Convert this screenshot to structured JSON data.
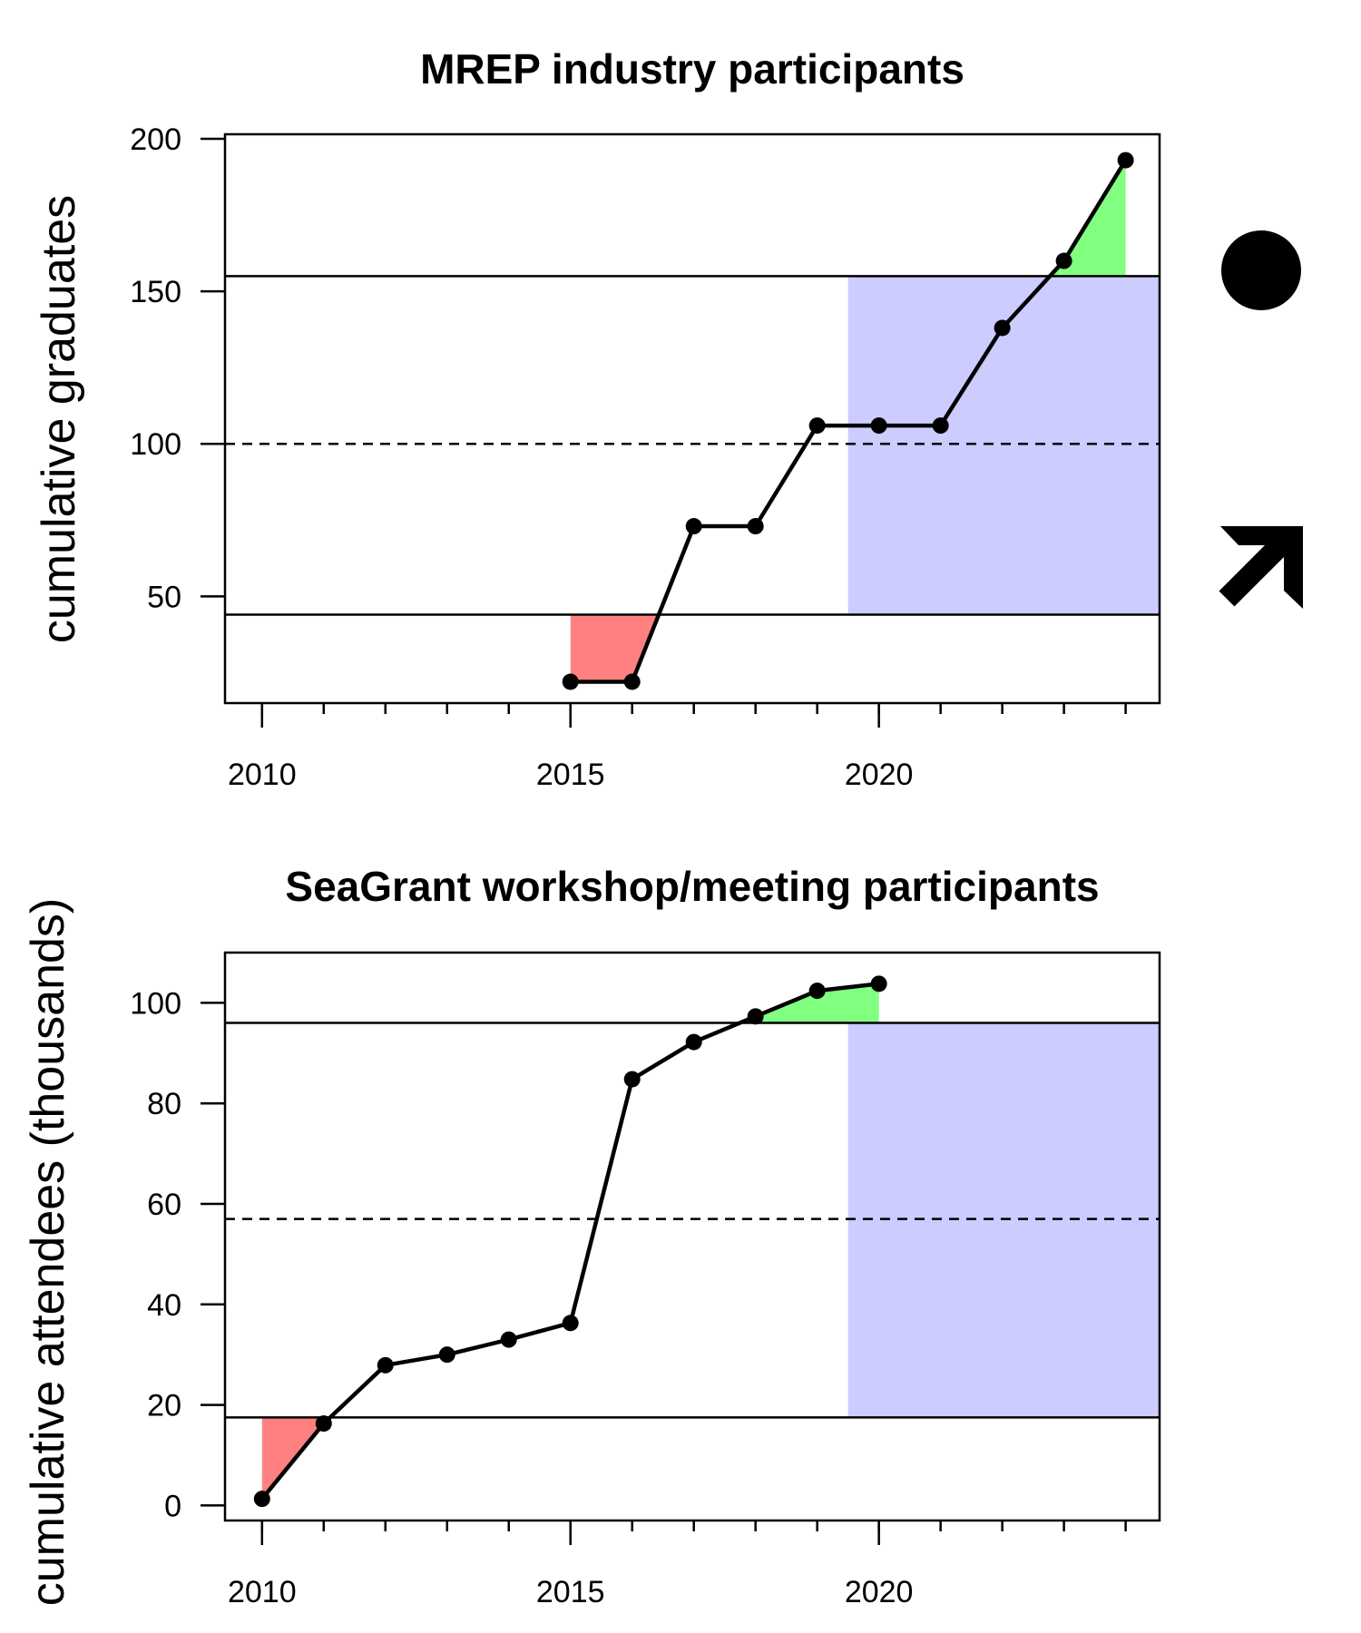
{
  "chart_data": [
    {
      "type": "line",
      "title": "MREP industry participants",
      "ylabel": "cumulative graduates",
      "xlabel": "",
      "xlim": [
        2009.4,
        2024.55
      ],
      "ylim": [
        15,
        201.5
      ],
      "x_ticks": [
        2010,
        2015,
        2020
      ],
      "x_minor_ticks": [
        2010,
        2011,
        2012,
        2013,
        2014,
        2015,
        2016,
        2017,
        2018,
        2019,
        2020,
        2021,
        2022,
        2023,
        2024
      ],
      "y_ticks": [
        50,
        100,
        150,
        200
      ],
      "x": [
        2015,
        2016,
        2017,
        2018,
        2019,
        2020,
        2021,
        2022,
        2023,
        2024
      ],
      "values": [
        22,
        22,
        73,
        73,
        106,
        106,
        106,
        138,
        160,
        193
      ],
      "upper_line": 155,
      "lower_line": 44,
      "mean_line": 100,
      "recent_shade_from": 2019.5,
      "colors": {
        "above": "#80ff80",
        "below": "#ff8080",
        "recent": "#ccccff",
        "line": "#000000"
      },
      "status_icon": "filled-circle-icon",
      "trend_icon": "arrow-up-right-icon"
    },
    {
      "type": "line",
      "title": "SeaGrant workshop/meeting participants",
      "ylabel": "cumulative attendees (thousands)",
      "xlabel": "",
      "xlim": [
        2009.4,
        2024.55
      ],
      "ylim": [
        -3,
        110
      ],
      "x_ticks": [
        2010,
        2015,
        2020
      ],
      "x_minor_ticks": [
        2010,
        2011,
        2012,
        2013,
        2014,
        2015,
        2016,
        2017,
        2018,
        2019,
        2020,
        2021,
        2022,
        2023,
        2024
      ],
      "y_ticks": [
        0,
        20,
        40,
        60,
        80,
        100
      ],
      "x": [
        2010,
        2011,
        2012,
        2013,
        2014,
        2015,
        2016,
        2017,
        2018,
        2019,
        2020
      ],
      "values": [
        1.3,
        16.3,
        27.9,
        30,
        33,
        36.3,
        84.8,
        92.2,
        97.3,
        102.4,
        103.8
      ],
      "upper_line": 96,
      "lower_line": 17.5,
      "mean_line": 57,
      "recent_shade_from": 2019.5,
      "colors": {
        "above": "#80ff80",
        "below": "#ff8080",
        "recent": "#ccccff",
        "line": "#000000"
      }
    }
  ]
}
